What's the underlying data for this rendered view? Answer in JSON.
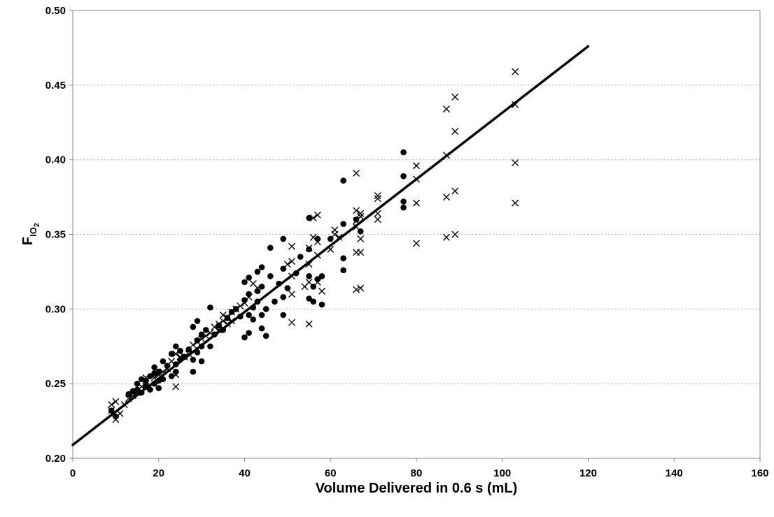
{
  "chart_data": {
    "type": "scatter",
    "title": "",
    "xlabel": "Volume Delivered in 0.6 s (mL)",
    "ylabel": {
      "main": "F",
      "sub": "IO",
      "subsub": "2"
    },
    "xlim": [
      0,
      160
    ],
    "ylim": [
      0.2,
      0.5
    ],
    "xticks": [
      "0",
      "20",
      "40",
      "60",
      "80",
      "100",
      "120",
      "140",
      "160"
    ],
    "yticks": [
      "0.20",
      "0.25",
      "0.30",
      "0.35",
      "0.40",
      "0.45",
      "0.50"
    ],
    "grid": "horizontal-dotted",
    "legend": "none",
    "colors": {
      "marker": "#000000",
      "line": "#000000",
      "grid": "#b0b0b0",
      "axis": "#888888"
    },
    "series": [
      {
        "marker": "circle",
        "points": [
          [
            9,
            0.232
          ],
          [
            10,
            0.228
          ],
          [
            13,
            0.243
          ],
          [
            14,
            0.245
          ],
          [
            15,
            0.25
          ],
          [
            15,
            0.246
          ],
          [
            16,
            0.244
          ],
          [
            16,
            0.253
          ],
          [
            17,
            0.248
          ],
          [
            17,
            0.252
          ],
          [
            18,
            0.255
          ],
          [
            18,
            0.246
          ],
          [
            19,
            0.25
          ],
          [
            19,
            0.257
          ],
          [
            19,
            0.261
          ],
          [
            20,
            0.247
          ],
          [
            20,
            0.252
          ],
          [
            20,
            0.258
          ],
          [
            21,
            0.253
          ],
          [
            21,
            0.265
          ],
          [
            22,
            0.262
          ],
          [
            23,
            0.255
          ],
          [
            23,
            0.27
          ],
          [
            24,
            0.258
          ],
          [
            24,
            0.263
          ],
          [
            24,
            0.275
          ],
          [
            25,
            0.266
          ],
          [
            25,
            0.272
          ],
          [
            26,
            0.268
          ],
          [
            27,
            0.273
          ],
          [
            28,
            0.258
          ],
          [
            28,
            0.266
          ],
          [
            28,
            0.288
          ],
          [
            29,
            0.271
          ],
          [
            29,
            0.279
          ],
          [
            29,
            0.292
          ],
          [
            30,
            0.265
          ],
          [
            30,
            0.275
          ],
          [
            30,
            0.283
          ],
          [
            31,
            0.286
          ],
          [
            32,
            0.275
          ],
          [
            32,
            0.301
          ],
          [
            33,
            0.283
          ],
          [
            34,
            0.289
          ],
          [
            35,
            0.286
          ],
          [
            36,
            0.294
          ],
          [
            37,
            0.298
          ],
          [
            38,
            0.3
          ],
          [
            39,
            0.295
          ],
          [
            40,
            0.281
          ],
          [
            40,
            0.306
          ],
          [
            40,
            0.318
          ],
          [
            41,
            0.284
          ],
          [
            41,
            0.296
          ],
          [
            41,
            0.31
          ],
          [
            41,
            0.321
          ],
          [
            42,
            0.301
          ],
          [
            42,
            0.293
          ],
          [
            43,
            0.305
          ],
          [
            43,
            0.312
          ],
          [
            43,
            0.325
          ],
          [
            44,
            0.287
          ],
          [
            44,
            0.296
          ],
          [
            44,
            0.315
          ],
          [
            44,
            0.328
          ],
          [
            45,
            0.282
          ],
          [
            45,
            0.3
          ],
          [
            46,
            0.322
          ],
          [
            46,
            0.341
          ],
          [
            47,
            0.305
          ],
          [
            48,
            0.317
          ],
          [
            49,
            0.296
          ],
          [
            49,
            0.308
          ],
          [
            49,
            0.327
          ],
          [
            49,
            0.347
          ],
          [
            50,
            0.314
          ],
          [
            52,
            0.324
          ],
          [
            53,
            0.335
          ],
          [
            55,
            0.307
          ],
          [
            55,
            0.322
          ],
          [
            55,
            0.34
          ],
          [
            55,
            0.361
          ],
          [
            56,
            0.305
          ],
          [
            56,
            0.315
          ],
          [
            57,
            0.347
          ],
          [
            57,
            0.32
          ],
          [
            58,
            0.303
          ],
          [
            58,
            0.322
          ],
          [
            60,
            0.347
          ],
          [
            63,
            0.326
          ],
          [
            63,
            0.334
          ],
          [
            63,
            0.357
          ],
          [
            63,
            0.386
          ],
          [
            66,
            0.36
          ],
          [
            67,
            0.352
          ],
          [
            77,
            0.368
          ],
          [
            77,
            0.372
          ],
          [
            77,
            0.389
          ],
          [
            77,
            0.405
          ]
        ]
      },
      {
        "marker": "x",
        "points": [
          [
            9,
            0.232
          ],
          [
            9,
            0.236
          ],
          [
            10,
            0.226
          ],
          [
            10,
            0.238
          ],
          [
            11,
            0.23
          ],
          [
            12,
            0.236
          ],
          [
            13,
            0.24
          ],
          [
            14,
            0.242
          ],
          [
            15,
            0.244
          ],
          [
            16,
            0.248
          ],
          [
            17,
            0.252
          ],
          [
            17,
            0.254
          ],
          [
            18,
            0.248
          ],
          [
            19,
            0.254
          ],
          [
            20,
            0.256
          ],
          [
            21,
            0.258
          ],
          [
            22,
            0.26
          ],
          [
            23,
            0.265
          ],
          [
            24,
            0.248
          ],
          [
            24,
            0.256
          ],
          [
            24,
            0.27
          ],
          [
            25,
            0.268
          ],
          [
            26,
            0.268
          ],
          [
            27,
            0.27
          ],
          [
            28,
            0.276
          ],
          [
            29,
            0.278
          ],
          [
            30,
            0.28
          ],
          [
            31,
            0.282
          ],
          [
            32,
            0.284
          ],
          [
            33,
            0.288
          ],
          [
            34,
            0.29
          ],
          [
            34,
            0.286
          ],
          [
            35,
            0.292
          ],
          [
            35,
            0.296
          ],
          [
            36,
            0.29
          ],
          [
            36,
            0.294
          ],
          [
            37,
            0.298
          ],
          [
            37,
            0.292
          ],
          [
            38,
            0.3
          ],
          [
            39,
            0.302
          ],
          [
            40,
            0.304
          ],
          [
            41,
            0.308
          ],
          [
            42,
            0.317
          ],
          [
            43,
            0.314
          ],
          [
            50,
            0.33
          ],
          [
            51,
            0.291
          ],
          [
            51,
            0.31
          ],
          [
            51,
            0.322
          ],
          [
            51,
            0.332
          ],
          [
            51,
            0.342
          ],
          [
            54,
            0.315
          ],
          [
            55,
            0.29
          ],
          [
            55,
            0.318
          ],
          [
            55,
            0.33
          ],
          [
            55,
            0.341
          ],
          [
            56,
            0.348
          ],
          [
            56,
            0.361
          ],
          [
            57,
            0.318
          ],
          [
            57,
            0.336
          ],
          [
            57,
            0.345
          ],
          [
            57,
            0.363
          ],
          [
            58,
            0.312
          ],
          [
            60,
            0.34
          ],
          [
            61,
            0.35
          ],
          [
            61,
            0.353
          ],
          [
            62,
            0.348
          ],
          [
            66,
            0.313
          ],
          [
            66,
            0.338
          ],
          [
            66,
            0.355
          ],
          [
            66,
            0.359
          ],
          [
            66,
            0.366
          ],
          [
            66,
            0.391
          ],
          [
            67,
            0.314
          ],
          [
            67,
            0.338
          ],
          [
            67,
            0.347
          ],
          [
            67,
            0.362
          ],
          [
            67,
            0.364
          ],
          [
            71,
            0.36
          ],
          [
            71,
            0.364
          ],
          [
            71,
            0.374
          ],
          [
            71,
            0.376
          ],
          [
            80,
            0.344
          ],
          [
            80,
            0.371
          ],
          [
            80,
            0.387
          ],
          [
            80,
            0.396
          ],
          [
            87,
            0.348
          ],
          [
            87,
            0.375
          ],
          [
            87,
            0.403
          ],
          [
            87,
            0.434
          ],
          [
            89,
            0.35
          ],
          [
            89,
            0.379
          ],
          [
            89,
            0.419
          ],
          [
            89,
            0.442
          ],
          [
            103,
            0.371
          ],
          [
            103,
            0.398
          ],
          [
            103,
            0.437
          ],
          [
            103,
            0.459
          ]
        ]
      }
    ],
    "trendline": {
      "x": [
        0,
        120
      ],
      "y": [
        0.209,
        0.476
      ]
    }
  }
}
